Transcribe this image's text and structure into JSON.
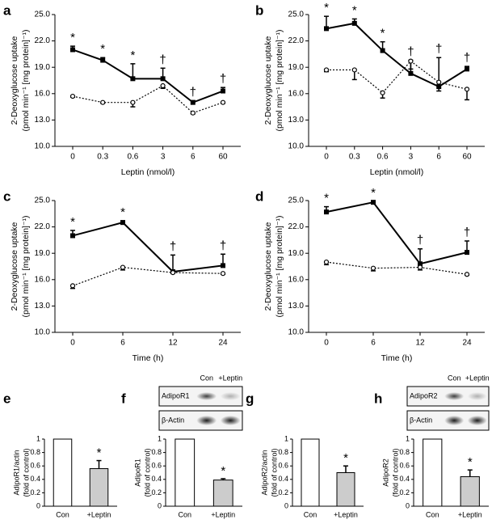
{
  "chart_data": [
    {
      "type": "line",
      "panel": "a",
      "xlabel": "Leptin (nmol/l)",
      "ylabel": [
        "2-Deoxyglucose uptake",
        "(pmol min⁻¹ [mg protein]⁻¹)"
      ],
      "categories": [
        "0",
        "0.3",
        "0.6",
        "3",
        "6",
        "60"
      ],
      "ylim": [
        10,
        25
      ],
      "yticks": [
        {
          "value": 10,
          "label": "10.0"
        },
        {
          "value": 13,
          "label": "13.0"
        },
        {
          "value": 16,
          "label": "16.0"
        },
        {
          "value": 19,
          "label": "19.0"
        },
        {
          "value": 22,
          "label": "22.0"
        },
        {
          "value": 25,
          "label": "25.0"
        }
      ],
      "series": [
        {
          "color": "#000000",
          "line": "solid",
          "marker": "square",
          "error_direction": "up",
          "values": [
            21.0,
            19.8,
            17.7,
            17.7,
            15.0,
            16.3
          ],
          "errors": [
            0.4,
            0.3,
            1.7,
            1.2,
            0.2,
            0.4
          ]
        },
        {
          "color": "#000000",
          "line": "dotted",
          "marker": "circle",
          "error_direction": "down",
          "values": [
            15.7,
            15.0,
            15.0,
            16.9,
            13.8,
            15.0
          ],
          "errors": [
            0.1,
            0.1,
            0.5,
            0.3,
            0.1,
            0.1
          ]
        }
      ],
      "annotations": [
        "*",
        "*",
        "*",
        "†",
        "†",
        "†"
      ]
    },
    {
      "type": "line",
      "panel": "b",
      "xlabel": "Leptin (nmol/l)",
      "ylabel": [
        "2-Deoxyglucose uptake",
        "(pmol min⁻¹ [mg protein]⁻¹)"
      ],
      "categories": [
        "0",
        "0.3",
        "0.6",
        "3",
        "6",
        "60"
      ],
      "ylim": [
        10,
        25
      ],
      "yticks": [
        {
          "value": 10,
          "label": "10.0"
        },
        {
          "value": 13,
          "label": "13.0"
        },
        {
          "value": 16,
          "label": "16.0"
        },
        {
          "value": 19,
          "label": "19.0"
        },
        {
          "value": 22,
          "label": "22.0"
        },
        {
          "value": 25,
          "label": "25.0"
        }
      ],
      "series": [
        {
          "color": "#000000",
          "line": "solid",
          "marker": "square",
          "error_direction": "up",
          "values": [
            23.4,
            24.0,
            20.9,
            18.3,
            16.8,
            18.8
          ],
          "errors": [
            1.4,
            0.5,
            1.0,
            1.5,
            3.3,
            0.3
          ]
        },
        {
          "color": "#000000",
          "line": "dotted",
          "marker": "circle",
          "error_direction": "down",
          "values": [
            18.7,
            18.7,
            16.1,
            19.7,
            17.3,
            16.5
          ],
          "errors": [
            0.2,
            1.1,
            0.6,
            0.9,
            1.0,
            1.2
          ]
        }
      ],
      "annotations": [
        "*",
        "*",
        "*",
        "†",
        "†",
        "†"
      ]
    },
    {
      "type": "line",
      "panel": "c",
      "xlabel": "Time (h)",
      "ylabel": [
        "2-Deoxyglucose uptake",
        "(pmol min⁻¹ [mg protein]⁻¹)"
      ],
      "categories": [
        "0",
        "6",
        "12",
        "24"
      ],
      "ylim": [
        10,
        25
      ],
      "yticks": [
        {
          "value": 10,
          "label": "10.0"
        },
        {
          "value": 13,
          "label": "13.0"
        },
        {
          "value": 16,
          "label": "16.0"
        },
        {
          "value": 19,
          "label": "19.0"
        },
        {
          "value": 22,
          "label": "22.0"
        },
        {
          "value": 25,
          "label": "25.0"
        }
      ],
      "series": [
        {
          "color": "#000000",
          "line": "solid",
          "marker": "square",
          "error_direction": "up",
          "values": [
            21.0,
            22.5,
            16.9,
            17.6
          ],
          "errors": [
            0.6,
            0.2,
            1.9,
            1.3
          ]
        },
        {
          "color": "#000000",
          "line": "dotted",
          "marker": "circle",
          "error_direction": "down",
          "values": [
            15.3,
            17.4,
            16.8,
            16.7
          ],
          "errors": [
            0.3,
            0.3,
            0.1,
            0.1
          ]
        }
      ],
      "annotations": [
        "*",
        "*",
        "†",
        "†"
      ]
    },
    {
      "type": "line",
      "panel": "d",
      "xlabel": "Time (h)",
      "ylabel": [
        "2-Deoxyglucose uptake",
        "(pmol min⁻¹ [mg protein]⁻¹)"
      ],
      "categories": [
        "0",
        "6",
        "12",
        "24"
      ],
      "ylim": [
        10,
        25
      ],
      "yticks": [
        {
          "value": 10,
          "label": "10.0"
        },
        {
          "value": 13,
          "label": "13.0"
        },
        {
          "value": 16,
          "label": "16.0"
        },
        {
          "value": 19,
          "label": "19.0"
        },
        {
          "value": 22,
          "label": "22.0"
        },
        {
          "value": 25,
          "label": "25.0"
        }
      ],
      "series": [
        {
          "color": "#000000",
          "line": "solid",
          "marker": "square",
          "error_direction": "up",
          "values": [
            23.7,
            24.8,
            17.8,
            19.1
          ],
          "errors": [
            0.6,
            0.1,
            1.7,
            1.3
          ]
        },
        {
          "color": "#000000",
          "line": "dotted",
          "marker": "circle",
          "error_direction": "down",
          "values": [
            18.0,
            17.3,
            17.4,
            16.6
          ],
          "errors": [
            0.3,
            0.3,
            0.3,
            0.1
          ]
        }
      ],
      "annotations": [
        "*",
        "*",
        "†",
        "†"
      ]
    },
    {
      "type": "bar",
      "panel": "e",
      "ylabel": [
        "AdipoR1/actin",
        "(fold of control)"
      ],
      "categories": [
        "Con",
        "+Leptin"
      ],
      "values": [
        1,
        0.56
      ],
      "errors": [
        0,
        0.12
      ],
      "colors": [
        "#ffffff",
        "#cccccc"
      ],
      "ylim": [
        0,
        1
      ],
      "yticks": [
        0,
        0.2,
        0.4,
        0.6,
        0.8,
        1
      ],
      "annotations": [
        null,
        "*"
      ]
    },
    {
      "type": "bar",
      "panel": "f",
      "ylabel": [
        "AdipoR1",
        "(fold of control)"
      ],
      "categories": [
        "Con",
        "+Leptin"
      ],
      "values": [
        1,
        0.39
      ],
      "errors": [
        0,
        0.02
      ],
      "colors": [
        "#ffffff",
        "#cccccc"
      ],
      "ylim": [
        0,
        1
      ],
      "yticks": [
        0,
        0.2,
        0.4,
        0.6,
        0.8,
        1
      ],
      "annotations": [
        null,
        "*"
      ],
      "blot": {
        "lanes": [
          "Con",
          "+Leptin"
        ],
        "rows": [
          "AdipoR1",
          "β-Actin"
        ]
      }
    },
    {
      "type": "bar",
      "panel": "g",
      "ylabel": [
        "AdipoR2/actin",
        "(fold of control)"
      ],
      "categories": [
        "Con",
        "+Leptin"
      ],
      "values": [
        1,
        0.5
      ],
      "errors": [
        0,
        0.1
      ],
      "colors": [
        "#ffffff",
        "#cccccc"
      ],
      "ylim": [
        0,
        1
      ],
      "yticks": [
        0,
        0.2,
        0.4,
        0.6,
        0.8,
        1
      ],
      "annotations": [
        null,
        "*"
      ]
    },
    {
      "type": "bar",
      "panel": "h",
      "ylabel": [
        "AdipoR2",
        "(fold of control)"
      ],
      "categories": [
        "Con",
        "+Leptin"
      ],
      "values": [
        1,
        0.44
      ],
      "errors": [
        0,
        0.1
      ],
      "colors": [
        "#ffffff",
        "#cccccc"
      ],
      "ylim": [
        0,
        1
      ],
      "yticks": [
        0,
        0.2,
        0.4,
        0.6,
        0.8,
        1
      ],
      "annotations": [
        null,
        "*"
      ],
      "blot": {
        "lanes": [
          "Con",
          "+Leptin"
        ],
        "rows": [
          "AdipoR2",
          "β-Actin"
        ]
      }
    }
  ]
}
